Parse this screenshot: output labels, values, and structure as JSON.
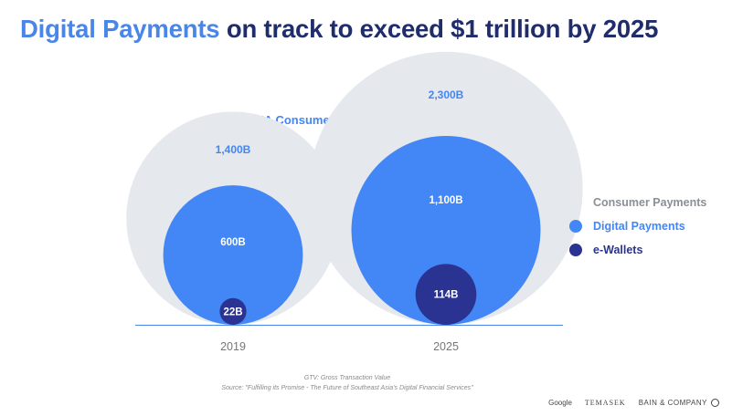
{
  "title": {
    "highlight": "Digital Payments",
    "rest": "on track to exceed $1 trillion by 2025"
  },
  "colors": {
    "consumer": "#e5e8ec",
    "digital": "#4386f5",
    "ewallet": "#2a3391",
    "title_highlight": "#4a86e8",
    "title_rest": "#1f2d6b",
    "axis": "#4a86e8"
  },
  "chart_data": {
    "type": "nested-bubble",
    "title": "SEA Consumer Payments (GTV, $B)",
    "categories": [
      "2019",
      "2025"
    ],
    "series": [
      {
        "name": "Consumer Payments",
        "values": [
          1400,
          2300
        ],
        "labels": [
          "1,400B",
          "2,300B"
        ]
      },
      {
        "name": "Digital Payments",
        "values": [
          600,
          1100
        ],
        "labels": [
          "600B",
          "1,100B"
        ]
      },
      {
        "name": "e-Wallets",
        "values": [
          22,
          114
        ],
        "labels": [
          "22B",
          "114B"
        ]
      }
    ],
    "legend_position": "right"
  },
  "legend": [
    {
      "label": "Consumer Payments",
      "color": "#e5e8ec",
      "text_color": "#8a8f98"
    },
    {
      "label": "Digital Payments",
      "color": "#4386f5",
      "text_color": "#4386f5"
    },
    {
      "label": "e-Wallets",
      "color": "#2a3391",
      "text_color": "#2a3391"
    }
  ],
  "footnotes": {
    "definition": "GTV: Gross Transaction Value",
    "source": "Source: \"Fulfilling its Promise - The Future of Southeast Asia's Digital Financial Services\""
  },
  "logos": {
    "google": "Google",
    "temasek": "TEMASEK",
    "bain": "BAIN & COMPANY"
  }
}
